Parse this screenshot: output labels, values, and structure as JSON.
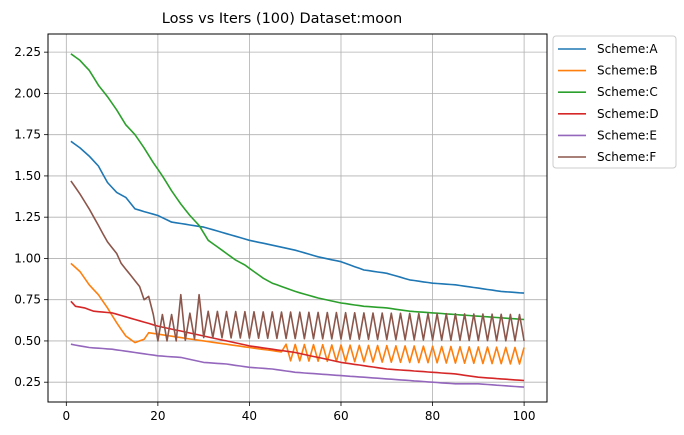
{
  "chart_data": {
    "type": "line",
    "title": "Loss vs Iters (100) Dataset:moon",
    "xlabel": "",
    "ylabel": "",
    "xlim": [
      -4,
      105
    ],
    "ylim": [
      0.13,
      2.36
    ],
    "xticks": [
      0,
      20,
      40,
      60,
      80,
      100
    ],
    "yticks": [
      0.25,
      0.5,
      0.75,
      1.0,
      1.25,
      1.5,
      1.75,
      2.0,
      2.25
    ],
    "ytick_labels": [
      "0.25",
      "0.50",
      "0.75",
      "1.00",
      "1.25",
      "1.50",
      "1.75",
      "2.00",
      "2.25"
    ],
    "grid": true,
    "legend_position": "outside-top-right",
    "series": [
      {
        "name": "Scheme:A",
        "color": "#1f77b4",
        "anchors": [
          [
            1,
            1.71
          ],
          [
            3,
            1.67
          ],
          [
            5,
            1.62
          ],
          [
            7,
            1.56
          ],
          [
            9,
            1.46
          ],
          [
            11,
            1.4
          ],
          [
            13,
            1.37
          ],
          [
            15,
            1.3
          ],
          [
            20,
            1.26
          ],
          [
            23,
            1.22
          ],
          [
            30,
            1.19
          ],
          [
            40,
            1.11
          ],
          [
            45,
            1.08
          ],
          [
            50,
            1.05
          ],
          [
            55,
            1.01
          ],
          [
            60,
            0.98
          ],
          [
            65,
            0.93
          ],
          [
            70,
            0.91
          ],
          [
            75,
            0.87
          ],
          [
            80,
            0.85
          ],
          [
            85,
            0.84
          ],
          [
            90,
            0.82
          ],
          [
            95,
            0.8
          ],
          [
            100,
            0.79
          ]
        ]
      },
      {
        "name": "Scheme:B",
        "color": "#ff7f0e",
        "anchors": [
          [
            1,
            0.97
          ],
          [
            3,
            0.92
          ],
          [
            5,
            0.84
          ],
          [
            7,
            0.78
          ],
          [
            9,
            0.7
          ],
          [
            11,
            0.61
          ],
          [
            13,
            0.53
          ],
          [
            15,
            0.49
          ],
          [
            17,
            0.51
          ],
          [
            18,
            0.55
          ],
          [
            25,
            0.52
          ],
          [
            30,
            0.5
          ],
          [
            40,
            0.46
          ],
          [
            48,
            0.43
          ],
          [
            100,
            0.41
          ]
        ],
        "noise_start": 48,
        "noise_amplitude": 0.05
      },
      {
        "name": "Scheme:C",
        "color": "#2ca02c",
        "anchors": [
          [
            1,
            2.24
          ],
          [
            3,
            2.2
          ],
          [
            5,
            2.14
          ],
          [
            7,
            2.05
          ],
          [
            9,
            1.98
          ],
          [
            11,
            1.9
          ],
          [
            13,
            1.81
          ],
          [
            15,
            1.75
          ],
          [
            17,
            1.67
          ],
          [
            19,
            1.58
          ],
          [
            21,
            1.5
          ],
          [
            23,
            1.41
          ],
          [
            25,
            1.33
          ],
          [
            27,
            1.26
          ],
          [
            29,
            1.2
          ],
          [
            31,
            1.11
          ],
          [
            33,
            1.07
          ],
          [
            35,
            1.03
          ],
          [
            37,
            0.99
          ],
          [
            39,
            0.96
          ],
          [
            41,
            0.92
          ],
          [
            43,
            0.88
          ],
          [
            45,
            0.85
          ],
          [
            50,
            0.8
          ],
          [
            55,
            0.76
          ],
          [
            60,
            0.73
          ],
          [
            65,
            0.71
          ],
          [
            70,
            0.7
          ],
          [
            75,
            0.68
          ],
          [
            80,
            0.67
          ],
          [
            85,
            0.66
          ],
          [
            90,
            0.65
          ],
          [
            95,
            0.64
          ],
          [
            100,
            0.63
          ]
        ]
      },
      {
        "name": "Scheme:D",
        "color": "#d62728",
        "anchors": [
          [
            1,
            0.74
          ],
          [
            2,
            0.71
          ],
          [
            4,
            0.7
          ],
          [
            6,
            0.68
          ],
          [
            10,
            0.67
          ],
          [
            15,
            0.63
          ],
          [
            20,
            0.59
          ],
          [
            25,
            0.56
          ],
          [
            30,
            0.53
          ],
          [
            35,
            0.5
          ],
          [
            40,
            0.47
          ],
          [
            45,
            0.45
          ],
          [
            50,
            0.43
          ],
          [
            55,
            0.4
          ],
          [
            60,
            0.37
          ],
          [
            65,
            0.35
          ],
          [
            70,
            0.33
          ],
          [
            75,
            0.32
          ],
          [
            80,
            0.31
          ],
          [
            85,
            0.3
          ],
          [
            90,
            0.28
          ],
          [
            95,
            0.27
          ],
          [
            100,
            0.26
          ]
        ]
      },
      {
        "name": "Scheme:E",
        "color": "#9467bd",
        "anchors": [
          [
            1,
            0.48
          ],
          [
            3,
            0.47
          ],
          [
            5,
            0.46
          ],
          [
            10,
            0.45
          ],
          [
            15,
            0.43
          ],
          [
            20,
            0.41
          ],
          [
            25,
            0.4
          ],
          [
            30,
            0.37
          ],
          [
            35,
            0.36
          ],
          [
            40,
            0.34
          ],
          [
            45,
            0.33
          ],
          [
            50,
            0.31
          ],
          [
            55,
            0.3
          ],
          [
            60,
            0.29
          ],
          [
            65,
            0.28
          ],
          [
            70,
            0.27
          ],
          [
            75,
            0.26
          ],
          [
            80,
            0.25
          ],
          [
            85,
            0.24
          ],
          [
            90,
            0.24
          ],
          [
            95,
            0.23
          ],
          [
            100,
            0.22
          ]
        ]
      },
      {
        "name": "Scheme:F",
        "color": "#8c564b",
        "anchors": [
          [
            1,
            1.47
          ],
          [
            3,
            1.39
          ],
          [
            5,
            1.3
          ],
          [
            7,
            1.2
          ],
          [
            9,
            1.1
          ],
          [
            11,
            1.03
          ],
          [
            12,
            0.97
          ],
          [
            14,
            0.9
          ],
          [
            16,
            0.83
          ],
          [
            17,
            0.75
          ],
          [
            18,
            0.77
          ],
          [
            19,
            0.58
          ],
          [
            25,
            0.58
          ],
          [
            30,
            0.6
          ],
          [
            100,
            0.58
          ]
        ],
        "noise_start": 19,
        "noise_amplitude": 0.08,
        "spikes": [
          [
            25,
            0.78
          ],
          [
            29,
            0.78
          ]
        ]
      }
    ]
  }
}
